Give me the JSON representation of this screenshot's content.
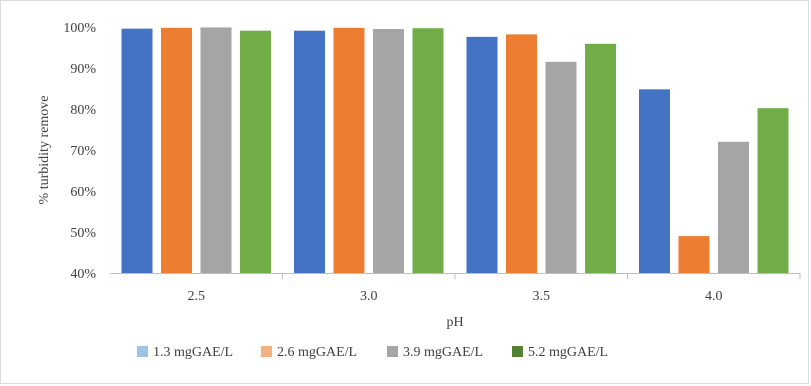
{
  "chart_data": {
    "type": "bar",
    "title": "",
    "xlabel": "pH",
    "ylabel": "% turbidity remove",
    "categories": [
      "2.5",
      "3.0",
      "3.5",
      "4.0"
    ],
    "ylim": [
      40,
      100
    ],
    "yticks": [
      40,
      50,
      60,
      70,
      80,
      90,
      100
    ],
    "ytick_labels": [
      "40%",
      "50%",
      "60%",
      "70%",
      "80%",
      "90%",
      "100%"
    ],
    "grid": false,
    "legend_position": "bottom",
    "series": [
      {
        "name": "1.3 mgGAE/L",
        "color": "#4472C4",
        "legend_color": "#9DC3E6",
        "values": [
          99.6,
          99.1,
          97.6,
          84.8
        ]
      },
      {
        "name": "2.6 mgGAE/L",
        "color": "#ED7D31",
        "legend_color": "#F4B183",
        "values": [
          99.8,
          99.8,
          98.2,
          49.0
        ]
      },
      {
        "name": "3.9 mgGAE/L",
        "color": "#A5A5A5",
        "legend_color": "#A5A5A5",
        "values": [
          99.9,
          99.5,
          91.5,
          72.0
        ]
      },
      {
        "name": "5.2 mgGAE/L",
        "color": "#70AD47",
        "legend_color": "#548235",
        "values": [
          99.1,
          99.7,
          95.9,
          80.2
        ]
      }
    ]
  }
}
